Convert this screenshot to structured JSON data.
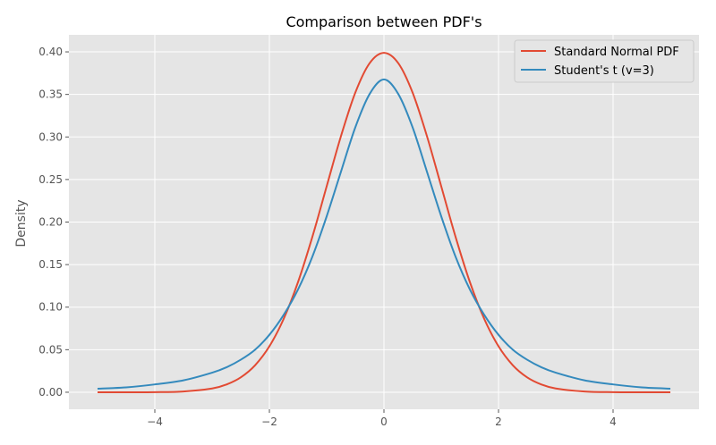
{
  "chart_data": {
    "type": "line",
    "title": "Comparison between PDF's",
    "xlabel": "",
    "ylabel": "Density",
    "xlim": [
      -5.5,
      5.5
    ],
    "ylim": [
      -0.02,
      0.42
    ],
    "xticks": [
      -4,
      -2,
      0,
      2,
      4
    ],
    "xtick_labels": [
      "−4",
      "−2",
      "0",
      "2",
      "4"
    ],
    "yticks": [
      0.0,
      0.05,
      0.1,
      0.15,
      0.2,
      0.25,
      0.3,
      0.35,
      0.4
    ],
    "ytick_labels": [
      "0.00",
      "0.05",
      "0.10",
      "0.15",
      "0.20",
      "0.25",
      "0.30",
      "0.35",
      "0.40"
    ],
    "grid": true,
    "legend_position": "top-right",
    "series": [
      {
        "name": "Standard Normal PDF",
        "color": "#E24A33",
        "x": [
          -5,
          -4.5,
          -4,
          -3.5,
          -3,
          -2.75,
          -2.5,
          -2.25,
          -2,
          -1.75,
          -1.5,
          -1.25,
          -1,
          -0.75,
          -0.5,
          -0.25,
          0,
          0.25,
          0.5,
          0.75,
          1,
          1.25,
          1.5,
          1.75,
          2,
          2.25,
          2.5,
          2.75,
          3,
          3.5,
          4,
          4.5,
          5
        ],
        "y": [
          0.0,
          0.0,
          0.0001,
          0.0009,
          0.0044,
          0.0091,
          0.0175,
          0.0317,
          0.054,
          0.0863,
          0.1295,
          0.1826,
          0.242,
          0.3011,
          0.3521,
          0.3867,
          0.3989,
          0.3867,
          0.3521,
          0.3011,
          0.242,
          0.1826,
          0.1295,
          0.0863,
          0.054,
          0.0317,
          0.0175,
          0.0091,
          0.0044,
          0.0009,
          0.0001,
          0.0,
          0.0
        ]
      },
      {
        "name": "Student's t (v=3)",
        "color": "#348ABD",
        "x": [
          -5,
          -4.5,
          -4,
          -3.5,
          -3,
          -2.75,
          -2.5,
          -2.25,
          -2,
          -1.75,
          -1.5,
          -1.25,
          -1,
          -0.75,
          -0.5,
          -0.25,
          0,
          0.25,
          0.5,
          0.75,
          1,
          1.25,
          1.5,
          1.75,
          2,
          2.25,
          2.5,
          2.75,
          3,
          3.5,
          4,
          4.5,
          5
        ],
        "y": [
          0.0042,
          0.0057,
          0.0092,
          0.014,
          0.023,
          0.0293,
          0.0382,
          0.05,
          0.0675,
          0.091,
          0.1208,
          0.1593,
          0.2067,
          0.2593,
          0.3113,
          0.3505,
          0.3676,
          0.3505,
          0.3113,
          0.2593,
          0.2067,
          0.1593,
          0.1208,
          0.091,
          0.0675,
          0.05,
          0.0382,
          0.0293,
          0.023,
          0.014,
          0.0092,
          0.0057,
          0.0042
        ]
      }
    ]
  },
  "colors": {
    "plot_background": "#E5E5E5",
    "grid": "#FFFFFF",
    "legend_background": "#E5E5E5",
    "legend_border": "#CCCCCC"
  }
}
